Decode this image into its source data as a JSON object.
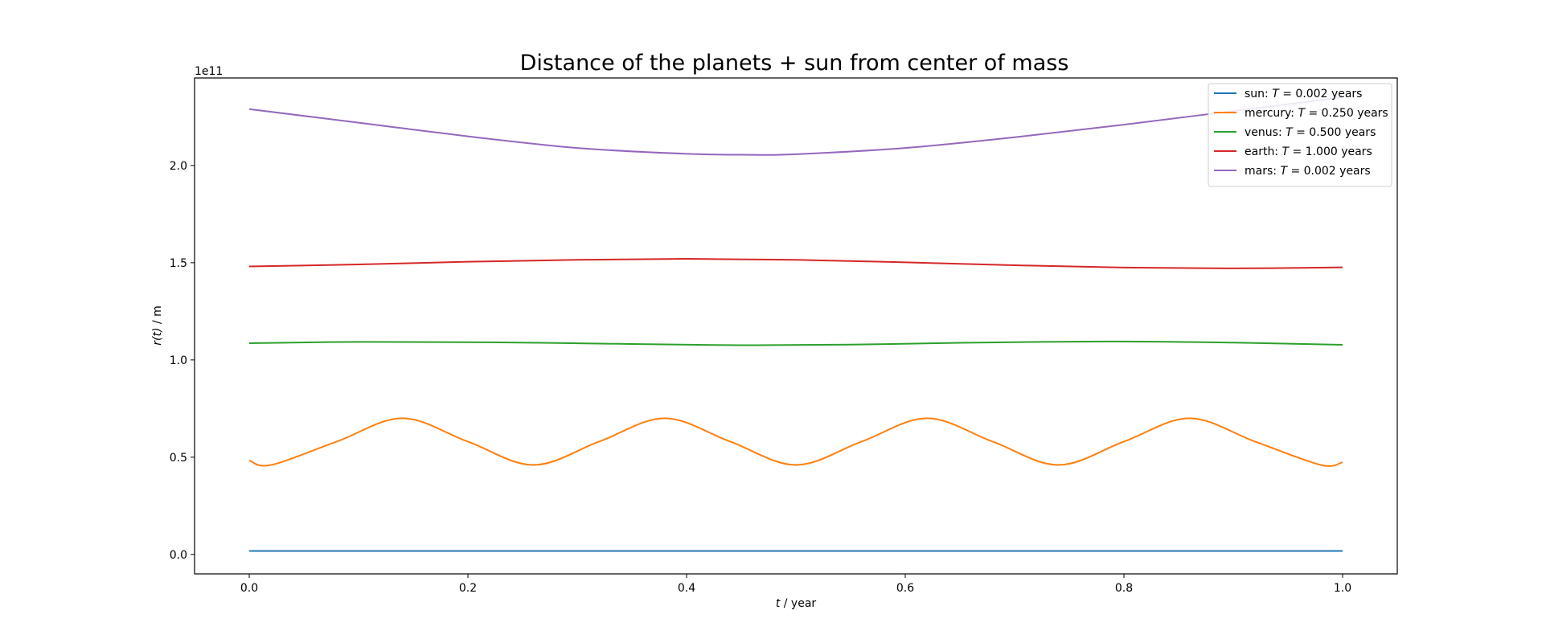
{
  "chart_data": {
    "type": "line",
    "title": "Distance of the planets + sun from center of mass",
    "xlabel_var": "t",
    "xlabel_unit": " / year",
    "ylabel_var": "r(t)",
    "ylabel_unit": " / m",
    "y_offset_label": "1e11",
    "xlim": [
      -0.05,
      1.05
    ],
    "ylim": [
      -0.1,
      2.45
    ],
    "x_ticks": [
      0.0,
      0.2,
      0.4,
      0.6,
      0.8,
      1.0
    ],
    "x_tick_labels": [
      "0.0",
      "0.2",
      "0.4",
      "0.6",
      "0.8",
      "1.0"
    ],
    "y_ticks": [
      0.0,
      0.5,
      1.0,
      1.5,
      2.0
    ],
    "y_tick_labels": [
      "0.0",
      "0.5",
      "1.0",
      "1.5",
      "2.0"
    ],
    "grid": false,
    "legend_position": "top-right",
    "series": [
      {
        "name": "sun",
        "legend_T": "0.002 years",
        "color": "#1f77b4",
        "x": [
          0.0,
          0.5,
          1.0
        ],
        "y": [
          0.018,
          0.018,
          0.018
        ]
      },
      {
        "name": "mercury",
        "legend_T": "0.250 years",
        "color": "#ff7f0e",
        "x": [
          0.0,
          0.02,
          0.08,
          0.14,
          0.2,
          0.26,
          0.32,
          0.38,
          0.44,
          0.5,
          0.56,
          0.62,
          0.68,
          0.74,
          0.8,
          0.86,
          0.92,
          0.98,
          1.0
        ],
        "y": [
          0.483,
          0.46,
          0.58,
          0.7,
          0.58,
          0.46,
          0.58,
          0.7,
          0.58,
          0.46,
          0.58,
          0.7,
          0.58,
          0.46,
          0.58,
          0.7,
          0.58,
          0.46,
          0.474
        ]
      },
      {
        "name": "venus",
        "legend_T": "0.500 years",
        "color": "#2ca02c",
        "x": [
          0.0,
          0.1,
          0.22,
          0.35,
          0.45,
          0.55,
          0.65,
          0.78,
          0.9,
          1.0
        ],
        "y": [
          1.086,
          1.093,
          1.091,
          1.082,
          1.076,
          1.079,
          1.088,
          1.095,
          1.089,
          1.078
        ]
      },
      {
        "name": "earth",
        "legend_T": "1.000 years",
        "color": "#d62728",
        "x": [
          0.0,
          0.1,
          0.2,
          0.3,
          0.4,
          0.5,
          0.6,
          0.7,
          0.8,
          0.9,
          1.0
        ],
        "y": [
          1.481,
          1.491,
          1.505,
          1.515,
          1.52,
          1.515,
          1.502,
          1.487,
          1.475,
          1.471,
          1.476
        ]
      },
      {
        "name": "mars",
        "legend_T": "0.002 years",
        "color": "#9467bd",
        "x": [
          0.0,
          0.1,
          0.2,
          0.3,
          0.4,
          0.46,
          0.5,
          0.6,
          0.7,
          0.8,
          0.9,
          1.0
        ],
        "y": [
          2.29,
          2.22,
          2.15,
          2.09,
          2.06,
          2.055,
          2.058,
          2.09,
          2.145,
          2.21,
          2.28,
          2.35
        ]
      }
    ]
  }
}
